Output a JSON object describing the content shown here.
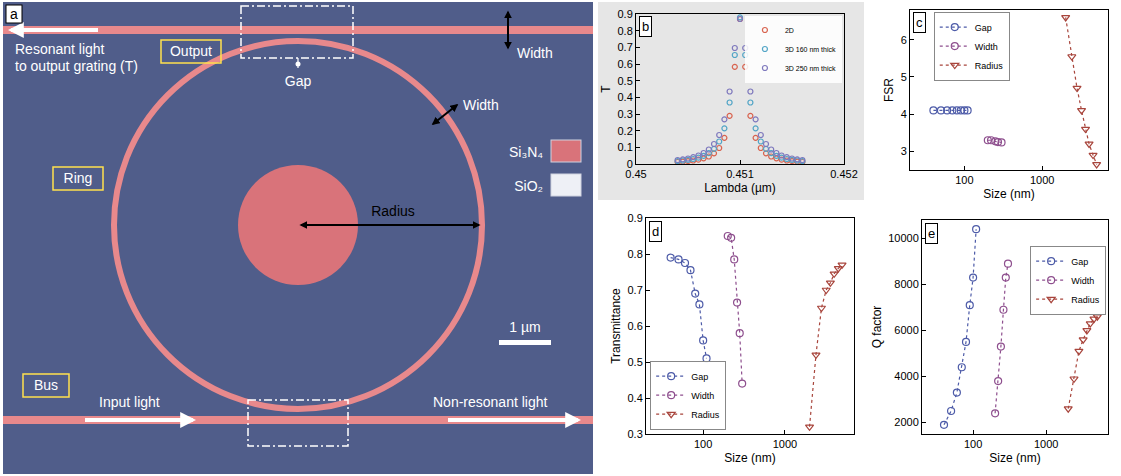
{
  "diagram": {
    "panel_label": "a",
    "output_label": [
      "Resonant light",
      "to output grating (T)"
    ],
    "regions": {
      "output": "Output",
      "ring": "Ring",
      "bus": "Bus"
    },
    "width_label": "Width",
    "gap_label": "Gap",
    "ring_width_label": "Width",
    "radius_label": "Radius",
    "materials": [
      {
        "name": "Si₃N₄",
        "color": "#d9737a"
      },
      {
        "name": "SiO₂",
        "color": "#eef0f6"
      }
    ],
    "scale_bar": "1 µm",
    "input_label": "Input light",
    "through_label": "Non-resonant light"
  },
  "chart_data": [
    {
      "panel_label": "b",
      "type": "scatter",
      "marker": "circle-open",
      "x_label": "Lambda (µm)",
      "y_label": "T",
      "x": [
        0.4504,
        0.45045,
        0.4505,
        0.45055,
        0.4506,
        0.45065,
        0.4507,
        0.45075,
        0.4508,
        0.45085,
        0.4509,
        0.45095,
        0.451,
        0.45105,
        0.4511,
        0.45115,
        0.4512,
        0.45125,
        0.4513,
        0.45135,
        0.4514,
        0.45145,
        0.4515,
        0.45155,
        0.4516
      ],
      "series": [
        {
          "name": "2D",
          "color": "#d8634f",
          "values": [
            0.012,
            0.014,
            0.017,
            0.021,
            0.026,
            0.034,
            0.045,
            0.064,
            0.096,
            0.157,
            0.289,
            0.583,
            0.87,
            0.583,
            0.289,
            0.157,
            0.096,
            0.064,
            0.045,
            0.034,
            0.026,
            0.021,
            0.017,
            0.014,
            0.012
          ]
        },
        {
          "name": "3D 160 nm thick",
          "color": "#52a5c6",
          "values": [
            0.017,
            0.021,
            0.025,
            0.03,
            0.038,
            0.049,
            0.065,
            0.091,
            0.135,
            0.214,
            0.369,
            0.654,
            0.88,
            0.654,
            0.369,
            0.214,
            0.135,
            0.091,
            0.065,
            0.049,
            0.038,
            0.03,
            0.025,
            0.021,
            0.017
          ]
        },
        {
          "name": "3D 250 nm thick",
          "color": "#7e78bd",
          "values": [
            0.024,
            0.028,
            0.033,
            0.041,
            0.051,
            0.066,
            0.087,
            0.12,
            0.174,
            0.268,
            0.435,
            0.696,
            0.87,
            0.696,
            0.435,
            0.268,
            0.174,
            0.12,
            0.087,
            0.066,
            0.051,
            0.041,
            0.033,
            0.028,
            0.024
          ]
        }
      ],
      "xlim": [
        0.45,
        0.452
      ],
      "xticks": [
        0.45,
        0.451,
        0.452
      ],
      "ylim": [
        0,
        0.9
      ],
      "yticks": [
        0,
        0.1,
        0.2,
        0.3,
        0.4,
        0.5,
        0.6,
        0.7,
        0.8,
        0.9
      ],
      "legend": "upper right"
    },
    {
      "panel_label": "c",
      "type": "line",
      "log": "x",
      "line_style": "dot",
      "x_label": "Size (nm)",
      "y_label": "FSR",
      "series": [
        {
          "name": "Gap",
          "color": "#4d5ba8",
          "marker": "circle-open",
          "x": [
            40,
            50,
            60,
            70,
            80,
            90,
            100,
            110
          ],
          "values": [
            4.1,
            4.1,
            4.1,
            4.1,
            4.1,
            4.1,
            4.1,
            4.1
          ]
        },
        {
          "name": "Width",
          "color": "#8e4f8e",
          "marker": "circle-open",
          "x": [
            200,
            220,
            250,
            270,
            300
          ],
          "values": [
            3.3,
            3.3,
            3.27,
            3.25,
            3.24
          ]
        },
        {
          "name": "Radius",
          "color": "#a8453c",
          "marker": "triangle-down-open",
          "x": [
            2000,
            2400,
            2800,
            3200,
            3600,
            4000,
            4500,
            5000
          ],
          "values": [
            6.6,
            5.55,
            4.7,
            4.1,
            3.6,
            3.2,
            2.9,
            2.65
          ]
        }
      ],
      "xlim": [
        20,
        7000
      ],
      "xticks": [
        100,
        1000
      ],
      "ylim": [
        2.5,
        6.8
      ],
      "yticks": [
        3,
        4,
        5,
        6
      ],
      "legend": "upper left"
    },
    {
      "panel_label": "d",
      "type": "line",
      "log": "x",
      "line_style": "dot",
      "x_label": "Size (nm)",
      "y_label": "Transmittance",
      "series": [
        {
          "name": "Gap",
          "color": "#4d5ba8",
          "marker": "circle-open",
          "x": [
            40,
            50,
            60,
            70,
            80,
            90,
            100,
            110
          ],
          "values": [
            0.79,
            0.785,
            0.775,
            0.755,
            0.69,
            0.66,
            0.56,
            0.51
          ]
        },
        {
          "name": "Width",
          "color": "#8e4f8e",
          "marker": "circle-open",
          "x": [
            200,
            220,
            240,
            260,
            280,
            300
          ],
          "values": [
            0.85,
            0.845,
            0.785,
            0.665,
            0.58,
            0.44
          ]
        },
        {
          "name": "Radius",
          "color": "#a8453c",
          "marker": "triangle-down-open",
          "x": [
            2000,
            2400,
            2800,
            3200,
            3600,
            4000,
            4500,
            5000
          ],
          "values": [
            0.32,
            0.52,
            0.65,
            0.7,
            0.72,
            0.745,
            0.76,
            0.77
          ]
        }
      ],
      "xlim": [
        20,
        7000
      ],
      "xticks": [
        100,
        1000
      ],
      "ylim": [
        0.3,
        0.9
      ],
      "yticks": [
        0.3,
        0.4,
        0.5,
        0.6,
        0.7,
        0.8,
        0.9
      ],
      "legend": "lower left"
    },
    {
      "panel_label": "e",
      "type": "line",
      "log": "x",
      "line_style": "dot",
      "x_label": "Size (nm)",
      "y_label": "Q factor",
      "series": [
        {
          "name": "Gap",
          "color": "#4d5ba8",
          "marker": "circle-open",
          "x": [
            40,
            50,
            60,
            70,
            80,
            90,
            100,
            110
          ],
          "values": [
            1900,
            2500,
            3300,
            4400,
            5500,
            7100,
            8300,
            10400
          ]
        },
        {
          "name": "Width",
          "color": "#8e4f8e",
          "marker": "circle-open",
          "x": [
            200,
            220,
            240,
            260,
            280,
            300
          ],
          "values": [
            2400,
            3800,
            5300,
            6900,
            8300,
            8900
          ]
        },
        {
          "name": "Radius",
          "color": "#a8453c",
          "marker": "triangle-down-open",
          "x": [
            2000,
            2400,
            2800,
            3200,
            3600,
            4000,
            4500,
            5000
          ],
          "values": [
            2600,
            3900,
            5100,
            5600,
            6000,
            6300,
            6500,
            6600
          ]
        }
      ],
      "xlim": [
        20,
        7000
      ],
      "xticks": [
        100,
        1000
      ],
      "ylim": [
        1500,
        10800
      ],
      "yticks": [
        2000,
        4000,
        6000,
        8000,
        10000
      ],
      "legend": "right"
    }
  ]
}
